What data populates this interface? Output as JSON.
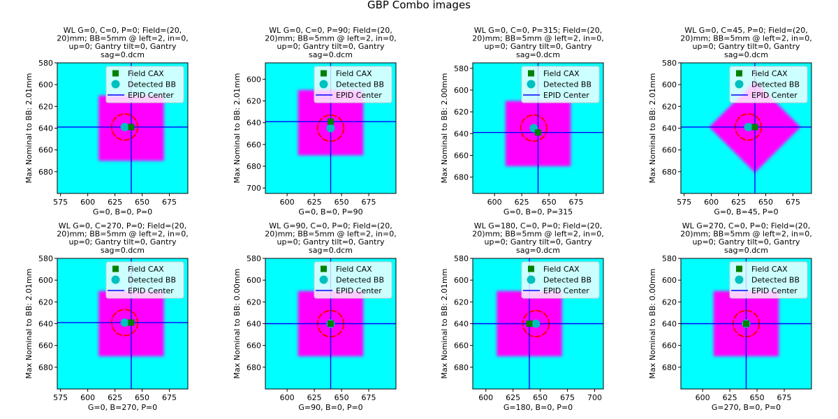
{
  "figure": {
    "title": "GBP Combo images",
    "legend_labels": [
      "Field CAX",
      "Detected BB",
      "EPID Center"
    ],
    "colors": {
      "background_field": "#00ffff",
      "field_aperture": "#ff00ff",
      "bb_circle": "#ff0000",
      "field_cax": "#008000",
      "detected_bb": "#00c0c0",
      "epid_center": "#0000ff"
    }
  },
  "chart_data": [
    {
      "type": "heatmap",
      "title": "WL G=0, C=0, P=0; Field=(20, 20)mm; BB=5mm @ left=2, in=0, up=0; Gantry tilt=0, Gantry sag=0.dcm",
      "title_lines": [
        "WL G=0, C=0, P=0; Field=(20,",
        "20)mm; BB=5mm @ left=2, in=0,",
        "up=0; Gantry tilt=0, Gantry",
        "sag=0.dcm"
      ],
      "xlabel": "G=0, B=0, P=0",
      "ylabel": "Max Nominal to BB: 2.01mm",
      "xlim": [
        572,
        692
      ],
      "ylim": [
        700,
        580
      ],
      "xticks": [
        575,
        600,
        625,
        650,
        675
      ],
      "yticks": [
        580,
        600,
        620,
        640,
        660,
        680
      ],
      "field_shape": "square",
      "field_x": [
        610,
        670
      ],
      "field_y": [
        610,
        670
      ],
      "field_cax": [
        640,
        639
      ],
      "detected_bb": [
        634,
        639
      ],
      "bb_circle_radius": 12,
      "epid_center": [
        640,
        639
      ],
      "legend": "upper right"
    },
    {
      "type": "heatmap",
      "title": "WL G=0, C=0, P=90; Field=(20, 20)mm; BB=5mm @ left=2, in=0, up=0; Gantry tilt=0, Gantry sag=0.dcm",
      "title_lines": [
        "WL G=0, C=0, P=90; Field=(20,",
        "20)mm; BB=5mm @ left=2, in=0,",
        "up=0; Gantry tilt=0, Gantry",
        "sag=0.dcm"
      ],
      "xlabel": "G=0, B=0, P=90",
      "ylabel": "Max Nominal to BB: 2.01mm",
      "xlim": [
        580,
        700
      ],
      "ylim": [
        705,
        585
      ],
      "xticks": [
        600,
        625,
        650,
        675
      ],
      "yticks": [
        600,
        620,
        640,
        660,
        680,
        700
      ],
      "field_shape": "square",
      "field_x": [
        610,
        670
      ],
      "field_y": [
        610,
        670
      ],
      "field_cax": [
        640,
        639
      ],
      "detected_bb": [
        640,
        645
      ],
      "bb_circle_radius": 12,
      "epid_center": [
        640,
        639
      ],
      "legend": "upper right"
    },
    {
      "type": "heatmap",
      "title": "WL G=0, C=0, P=315; Field=(20, 20)mm; BB=5mm @ left=2, in=0, up=0; Gantry tilt=0, Gantry sag=0.dcm",
      "title_lines": [
        "WL G=0, C=0, P=315; Field=(20,",
        "20)mm; BB=5mm @ left=2, in=0,",
        "up=0; Gantry tilt=0, Gantry",
        "sag=0.dcm"
      ],
      "xlabel": "G=0, B=0, P=315",
      "ylabel": "Max Nominal to BB: 2.00mm",
      "xlim": [
        580,
        700
      ],
      "ylim": [
        695,
        575
      ],
      "xticks": [
        600,
        625,
        650,
        675
      ],
      "yticks": [
        580,
        600,
        620,
        640,
        660,
        680
      ],
      "field_shape": "square",
      "field_x": [
        610,
        670
      ],
      "field_y": [
        610,
        670
      ],
      "field_cax": [
        640,
        639
      ],
      "detected_bb": [
        636,
        635
      ],
      "bb_circle_radius": 12,
      "epid_center": [
        640,
        639
      ],
      "legend": "upper right"
    },
    {
      "type": "heatmap",
      "title": "WL G=0, C=45, P=0; Field=(20, 20)mm; BB=5mm @ left=2, in=0, up=0; Gantry tilt=0, Gantry sag=0.dcm",
      "title_lines": [
        "WL G=0, C=45, P=0; Field=(20,",
        "20)mm; BB=5mm @ left=2, in=0,",
        "up=0; Gantry tilt=0, Gantry",
        "sag=0.dcm"
      ],
      "xlabel": "G=0, B=45, P=0",
      "ylabel": "Max Nominal to BB: 2.01mm",
      "xlim": [
        572,
        692
      ],
      "ylim": [
        700,
        580
      ],
      "xticks": [
        575,
        600,
        625,
        650,
        675
      ],
      "yticks": [
        580,
        600,
        620,
        640,
        660,
        680
      ],
      "field_shape": "diamond",
      "field_center": [
        640,
        639
      ],
      "field_half_diagonal": 42,
      "field_cax": [
        640,
        639
      ],
      "detected_bb": [
        634,
        639
      ],
      "bb_circle_radius": 12,
      "epid_center": [
        640,
        639
      ],
      "legend": "upper right"
    },
    {
      "type": "heatmap",
      "title": "WL G=0, C=270, P=0; Field=(20, 20)mm; BB=5mm @ left=2, in=0, up=0; Gantry tilt=0, Gantry sag=0.dcm",
      "title_lines": [
        "WL G=0, C=270, P=0; Field=(20,",
        "20)mm; BB=5mm @ left=2, in=0,",
        "up=0; Gantry tilt=0, Gantry",
        "sag=0.dcm"
      ],
      "xlabel": "G=0, B=270, P=0",
      "ylabel": "Max Nominal to BB: 2.01mm",
      "xlim": [
        572,
        692
      ],
      "ylim": [
        700,
        580
      ],
      "xticks": [
        575,
        600,
        625,
        650,
        675
      ],
      "yticks": [
        580,
        600,
        620,
        640,
        660,
        680
      ],
      "field_shape": "square",
      "field_x": [
        610,
        670
      ],
      "field_y": [
        610,
        670
      ],
      "field_cax": [
        640,
        639
      ],
      "detected_bb": [
        634,
        639
      ],
      "bb_circle_radius": 12,
      "epid_center": [
        640,
        639
      ],
      "legend": "upper right"
    },
    {
      "type": "heatmap",
      "title": "WL G=90, C=0, P=0; Field=(20, 20)mm; BB=5mm @ left=2, in=0, up=0; Gantry tilt=0, Gantry sag=0.dcm",
      "title_lines": [
        "WL G=90, C=0, P=0; Field=(20,",
        "20)mm; BB=5mm @ left=2, in=0,",
        "up=0; Gantry tilt=0, Gantry",
        "sag=0.dcm"
      ],
      "xlabel": "G=90, B=0, P=0",
      "ylabel": "Max Nominal to BB: 0.00mm",
      "xlim": [
        580,
        700
      ],
      "ylim": [
        700,
        580
      ],
      "xticks": [
        600,
        625,
        650,
        675
      ],
      "yticks": [
        580,
        600,
        620,
        640,
        660,
        680
      ],
      "field_shape": "square",
      "field_x": [
        610,
        670
      ],
      "field_y": [
        610,
        670
      ],
      "field_cax": [
        640,
        640
      ],
      "detected_bb": [
        640,
        640
      ],
      "bb_circle_radius": 12,
      "epid_center": [
        640,
        640
      ],
      "legend": "upper right"
    },
    {
      "type": "heatmap",
      "title": "WL G=180, C=0, P=0; Field=(20, 20)mm; BB=5mm @ left=2, in=0, up=0; Gantry tilt=0, Gantry sag=0.dcm",
      "title_lines": [
        "WL G=180, C=0, P=0; Field=(20,",
        "20)mm; BB=5mm @ left=2, in=0,",
        "up=0; Gantry tilt=0, Gantry",
        "sag=0.dcm"
      ],
      "xlabel": "G=180, B=0, P=0",
      "ylabel": "Max Nominal to BB: 2.01mm",
      "xlim": [
        588,
        708
      ],
      "ylim": [
        700,
        580
      ],
      "xticks": [
        600,
        625,
        650,
        675,
        700
      ],
      "yticks": [
        580,
        600,
        620,
        640,
        660,
        680
      ],
      "field_shape": "square",
      "field_x": [
        610,
        670
      ],
      "field_y": [
        610,
        670
      ],
      "field_cax": [
        640,
        640
      ],
      "detected_bb": [
        646,
        640
      ],
      "bb_circle_radius": 12,
      "epid_center": [
        640,
        640
      ],
      "legend": "upper right"
    },
    {
      "type": "heatmap",
      "title": "WL G=270, C=0, P=0; Field=(20, 20)mm; BB=5mm @ left=2, in=0, up=0; Gantry tilt=0, Gantry sag=0.dcm",
      "title_lines": [
        "WL G=270, C=0, P=0; Field=(20,",
        "20)mm; BB=5mm @ left=2, in=0,",
        "up=0; Gantry tilt=0, Gantry",
        "sag=0.dcm"
      ],
      "xlabel": "G=270, B=0, P=0",
      "ylabel": "Max Nominal to BB: 0.00mm",
      "xlim": [
        580,
        700
      ],
      "ylim": [
        700,
        580
      ],
      "xticks": [
        600,
        625,
        650,
        675
      ],
      "yticks": [
        580,
        600,
        620,
        640,
        660,
        680
      ],
      "field_shape": "square",
      "field_x": [
        610,
        670
      ],
      "field_y": [
        610,
        670
      ],
      "field_cax": [
        640,
        640
      ],
      "detected_bb": [
        640,
        640
      ],
      "bb_circle_radius": 12,
      "epid_center": [
        640,
        640
      ],
      "legend": "upper right"
    }
  ]
}
